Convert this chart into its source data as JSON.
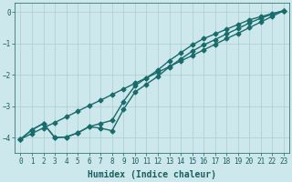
{
  "xlabel": "Humidex (Indice chaleur)",
  "ylabel": "",
  "xlim": [
    -0.5,
    23.5
  ],
  "ylim": [
    -4.5,
    0.3
  ],
  "background_color": "#cce8ec",
  "grid_color": "#aacccc",
  "line_color": "#1a6b6b",
  "x": [
    0,
    1,
    2,
    3,
    4,
    5,
    6,
    7,
    8,
    9,
    10,
    11,
    12,
    13,
    14,
    15,
    16,
    17,
    18,
    19,
    20,
    21,
    22,
    23
  ],
  "line_straight": [
    -4.05,
    -3.87,
    -3.69,
    -3.52,
    -3.34,
    -3.16,
    -2.98,
    -2.81,
    -2.63,
    -2.45,
    -2.27,
    -2.1,
    -1.92,
    -1.74,
    -1.56,
    -1.39,
    -1.21,
    -1.03,
    -0.85,
    -0.68,
    -0.5,
    -0.32,
    -0.14,
    0.04
  ],
  "line_upper": [
    -4.05,
    -3.75,
    -3.55,
    -4.0,
    -3.98,
    -3.85,
    -3.65,
    -3.55,
    -3.45,
    -2.85,
    -2.35,
    -2.1,
    -1.85,
    -1.55,
    -1.3,
    -1.05,
    -0.85,
    -0.7,
    -0.55,
    -0.4,
    -0.25,
    -0.15,
    -0.05,
    0.04
  ],
  "line_lower": [
    -4.05,
    -3.75,
    -3.55,
    -4.0,
    -3.98,
    -3.85,
    -3.65,
    -3.7,
    -3.78,
    -3.1,
    -2.55,
    -2.3,
    -2.05,
    -1.75,
    -1.5,
    -1.25,
    -1.05,
    -0.88,
    -0.7,
    -0.53,
    -0.35,
    -0.2,
    -0.07,
    0.04
  ],
  "yticks": [
    0,
    -1,
    -2,
    -3,
    -4
  ],
  "xticks": [
    0,
    1,
    2,
    3,
    4,
    5,
    6,
    7,
    8,
    9,
    10,
    11,
    12,
    13,
    14,
    15,
    16,
    17,
    18,
    19,
    20,
    21,
    22,
    23
  ],
  "marker": "D",
  "markersize": 2.5,
  "linewidth": 1.0,
  "font_color": "#1a5f5f",
  "axis_fontsize": 7,
  "tick_fontsize": 5.5
}
